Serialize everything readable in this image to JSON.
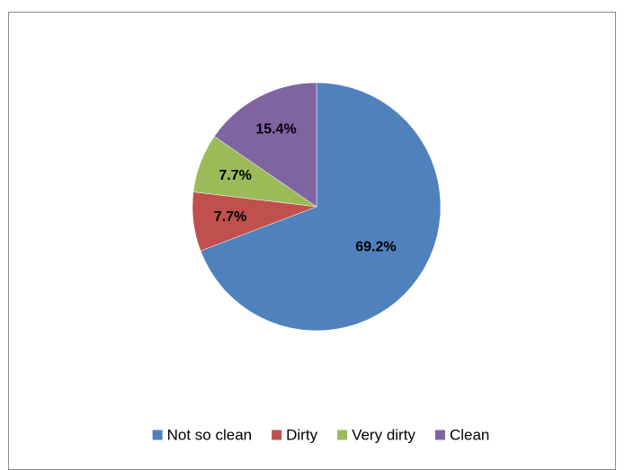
{
  "chart_data": {
    "type": "pie",
    "title": "",
    "categories": [
      "Not so clean",
      "Dirty",
      "Very dirty",
      "Clean"
    ],
    "values": [
      69.2,
      7.7,
      7.7,
      15.4
    ],
    "data_labels": [
      "69.2%",
      "7.7%",
      "7.7%",
      "15.4%"
    ],
    "colors": [
      "#4F81BD",
      "#C0504D",
      "#9BBB59",
      "#8064A2"
    ],
    "start_angle": "12 o'clock, clockwise",
    "legend": {
      "position": "bottom",
      "entries": [
        "Not so clean",
        "Dirty",
        "Very dirty",
        "Clean"
      ]
    }
  }
}
